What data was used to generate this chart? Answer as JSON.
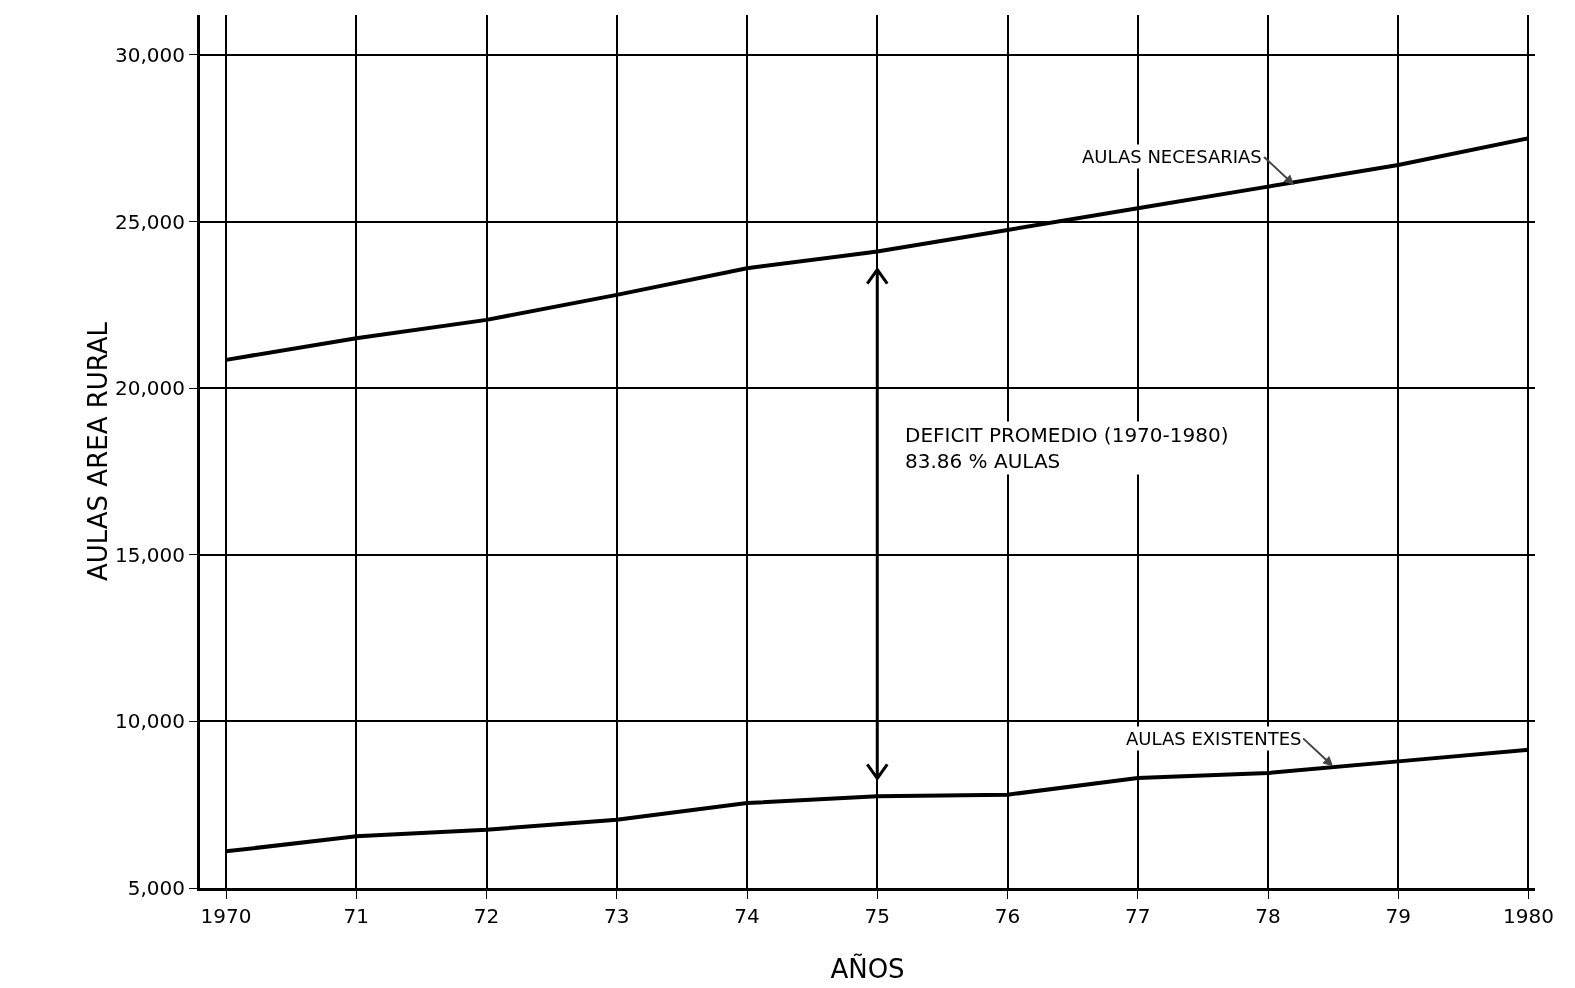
{
  "chart_data": {
    "type": "line",
    "xlabel": "AÑOS",
    "ylabel": "AULAS AREA RURAL",
    "x": [
      1970,
      1971,
      1972,
      1973,
      1974,
      1975,
      1976,
      1977,
      1978,
      1979,
      1980
    ],
    "series": [
      {
        "color": "#000000",
        "values": [
          20850,
          21500,
          22050,
          22800,
          23600,
          24100,
          24750,
          25400,
          26050,
          26700,
          27500
        ]
      },
      {
        "color": "#000000",
        "values": [
          6100,
          6550,
          6750,
          7050,
          7550,
          7750,
          7800,
          8300,
          8450,
          8800,
          9150
        ]
      }
    ],
    "xlim": [
      1969.8,
      1980.05
    ],
    "xticks": [
      1970,
      {
        "value": 1971,
        "label": "71"
      },
      {
        "value": 1972,
        "label": "72"
      },
      {
        "value": 1973,
        "label": "73"
      },
      {
        "value": 1974,
        "label": "74"
      },
      {
        "value": 1975,
        "label": "75"
      },
      {
        "value": 1976,
        "label": "76"
      },
      {
        "value": 1977,
        "label": "77"
      },
      {
        "value": 1978,
        "label": "78"
      },
      {
        "value": 1979,
        "label": "79"
      },
      1980
    ],
    "ylim": [
      5000,
      31200
    ],
    "yticks": [
      {
        "value": 5000,
        "label": "5,000"
      },
      {
        "value": 10000,
        "label": "10,000"
      },
      {
        "value": 15000,
        "label": "15,000"
      },
      {
        "value": 20000,
        "label": "20,000"
      },
      {
        "value": 25000,
        "label": "25,000"
      },
      {
        "value": 30000,
        "label": "30,000"
      }
    ],
    "grid": true,
    "marker": "none",
    "line_style": "solid",
    "annotations": [
      {
        "text": "AULAS NECESARIAS",
        "x": 1978.2,
        "y": 26100
      },
      {
        "text": "AULAS EXISTENTES",
        "x": 1978.5,
        "y": 8650
      },
      "DEFICIT PROMEDIO (1970-1980)\n83.86 % AULAS"
    ]
  }
}
